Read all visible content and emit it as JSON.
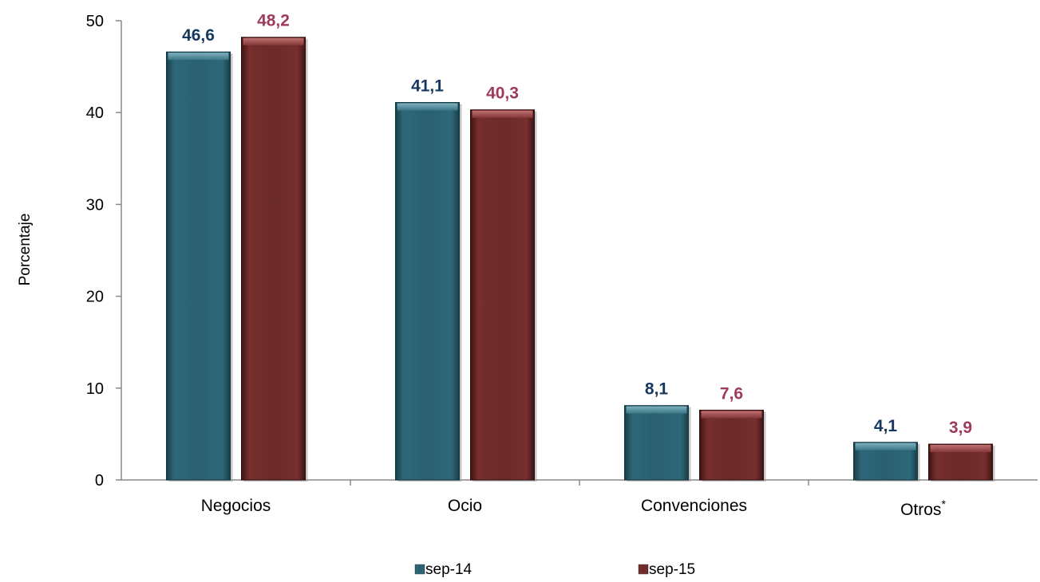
{
  "chart_data": {
    "type": "bar",
    "categories": [
      "Negocios",
      "Ocio",
      "Convenciones",
      "Otros"
    ],
    "category_superscripts": [
      "",
      "",
      "",
      "*"
    ],
    "series": [
      {
        "name": "sep-14",
        "values": [
          46.6,
          41.1,
          8.1,
          4.1
        ],
        "labels": [
          "46,6",
          "41,1",
          "8,1",
          "4,1"
        ],
        "color": "#2a6070",
        "label_color": "#17375e"
      },
      {
        "name": "sep-15",
        "values": [
          48.2,
          40.3,
          7.6,
          3.9
        ],
        "labels": [
          "48,2",
          "40,3",
          "7,6",
          "3,9"
        ],
        "color": "#6b2a2a",
        "label_color": "#a0395e"
      }
    ],
    "ylabel": "Porcentaje",
    "ylim": [
      0,
      50
    ],
    "yticks": [
      0,
      10,
      20,
      30,
      40,
      50
    ],
    "grid": false,
    "legend_position": "bottom"
  }
}
